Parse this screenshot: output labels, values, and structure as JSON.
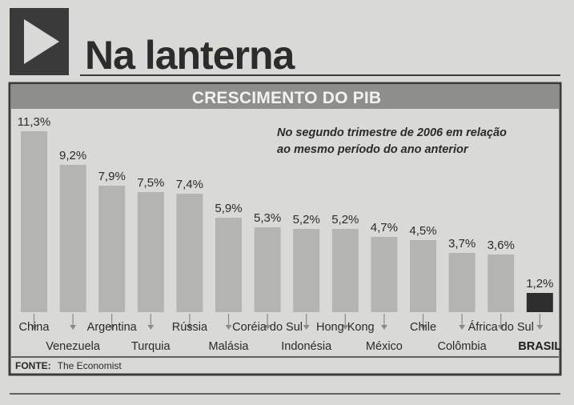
{
  "header": {
    "title": "Na lanterna",
    "subtitle": "CRESCIMENTO DO PIB"
  },
  "note": {
    "line1": "No segundo trimestre de 2006 em relação",
    "line2": "ao mesmo período do ano anterior"
  },
  "source": {
    "label": "FONTE:",
    "text": "The Economist"
  },
  "colors": {
    "bar": "#b4b4b1",
    "highlight_bar": "#2e2e2e",
    "header_band": "#8e8e8b",
    "frame": "#3a3a3a",
    "background": "#d9d9d6"
  },
  "icons": {
    "header_arrow": "play-triangle-icon"
  },
  "chart_data": {
    "type": "bar",
    "title": "CRESCIMENTO DO PIB",
    "xlabel": "",
    "ylabel": "",
    "unit": "%",
    "ylim": [
      0,
      11.3
    ],
    "grid": false,
    "legend": "none",
    "highlight": "BRASIL",
    "categories": [
      "China",
      "Venezuela",
      "Argentina",
      "Turquia",
      "Rússia",
      "Malásia",
      "Coréia do Sul",
      "Indonésia",
      "Hong Kong",
      "México",
      "Chile",
      "Colômbia",
      "África do Sul",
      "BRASIL"
    ],
    "values": [
      11.3,
      9.2,
      7.9,
      7.5,
      7.4,
      5.9,
      5.3,
      5.2,
      5.2,
      4.7,
      4.5,
      3.7,
      3.6,
      1.2
    ],
    "value_labels": [
      "11,3%",
      "9,2%",
      "7,9%",
      "7,5%",
      "7,4%",
      "5,9%",
      "5,3%",
      "5,2%",
      "5,2%",
      "4,7%",
      "4,5%",
      "3,7%",
      "3,6%",
      "1,2%"
    ]
  }
}
